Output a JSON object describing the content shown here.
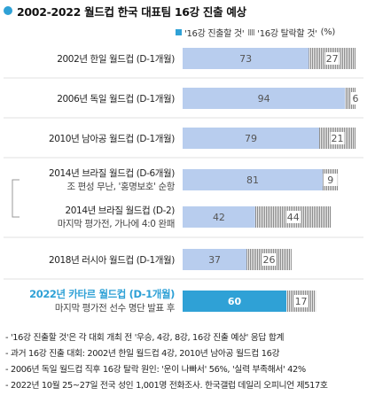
{
  "title": "2002-2022 월드컵 한국 대표팀 16강 진출 예상",
  "legend": {
    "a": "'16강 진출할 것'",
    "b": "'16강 탈락할 것'",
    "unit": "(%)"
  },
  "colors": {
    "accent": "#2fa1d6",
    "bar_light": "#b8cdee",
    "hatch_dark": "#8a8a8a",
    "hatch_light": "#e9e9e9"
  },
  "chart_data": {
    "type": "bar",
    "orientation": "horizontal-stacked",
    "title": "2002-2022 월드컵 한국 대표팀 16강 진출 예상",
    "categories": [
      "2002년 한일 월드컵 (D-1개월)",
      "2006년 독일 월드컵 (D-1개월)",
      "2010년 남아공 월드컵 (D-1개월)",
      "2014년 브라질 월드컵 (D-6개월)",
      "2014년 브라질 월드컵 (D-2)",
      "2018년 러시아 월드컵 (D-1개월)",
      "2022년 카타르 월드컵 (D-1개월)"
    ],
    "subtitles": [
      "",
      "",
      "",
      "조 편성 무난, '홍명보호' 순항",
      "마지막 평가전, 가나에 4:0 완패",
      "",
      "마지막 평가전 선수 명단 발표 후"
    ],
    "highlight_index": 6,
    "series": [
      {
        "name": "'16강 진출할 것'",
        "values": [
          73,
          94,
          79,
          81,
          42,
          37,
          60
        ]
      },
      {
        "name": "'16강 탈락할 것'",
        "values": [
          27,
          6,
          21,
          9,
          44,
          26,
          17
        ]
      }
    ],
    "xlim": [
      0,
      100
    ],
    "unit": "%"
  },
  "notes": [
    "- '16강 진출할 것'은 각 대회 개최 전 '우승, 4강, 8강, 16강 진출 예상' 응답 합계",
    "- 과거 16강 진출 대회: 2002년 한일 월드컵 4강, 2010년 남아공 월드컵 16강",
    "- 2006년 독일 월드컵 직후 16강 탈락 원인: '운이 나빠서' 56%, '실력 부족해서' 42%",
    "- 2022년 10월 25~27일 전국 성인 1,001명 전화조사. 한국갤럽 데일리 오피니언 제517호"
  ]
}
